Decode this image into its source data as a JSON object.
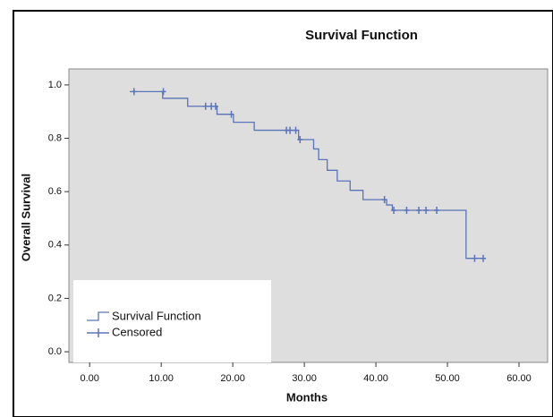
{
  "chart_data": {
    "type": "survival",
    "title": "Survival Function",
    "x_label": "Months",
    "y_label": "Overall Survival",
    "xlim": [
      -2.9,
      64
    ],
    "ylim": [
      -0.04,
      1.06
    ],
    "xticks": [
      {
        "value": 0,
        "label": "0.00"
      },
      {
        "value": 10,
        "label": "10.00"
      },
      {
        "value": 20,
        "label": "20.00"
      },
      {
        "value": 30,
        "label": "30.00"
      },
      {
        "value": 40,
        "label": "40.00"
      },
      {
        "value": 50,
        "label": "50.00"
      },
      {
        "value": 60,
        "label": "60.00"
      }
    ],
    "yticks": [
      {
        "value": 0,
        "label": "0.0"
      },
      0.2,
      0.4,
      0.6,
      0.8,
      {
        "value": 1,
        "label": "1.0"
      }
    ],
    "series": [
      {
        "name": "Survival Function",
        "color": "#5b74b8",
        "x": [
          5.6,
          10.2,
          13.7,
          17.8,
          20.1,
          23.0,
          29.2,
          31.3,
          32.0,
          33.2,
          34.6,
          36.4,
          38.2,
          41.5,
          42.3,
          52.6,
          55.3
        ],
        "values": [
          0.975,
          0.95,
          0.92,
          0.89,
          0.86,
          0.83,
          0.795,
          0.76,
          0.72,
          0.68,
          0.64,
          0.605,
          0.57,
          0.55,
          0.53,
          0.35,
          0.35
        ]
      },
      {
        "name": "Censored",
        "color": "#5b74b8",
        "x": [
          6.2,
          10.3,
          16.2,
          17.0,
          17.6,
          19.8,
          27.5,
          28.0,
          28.8,
          29.4,
          41.2,
          42.5,
          44.3,
          46.0,
          47.0,
          48.5,
          53.8,
          55.0
        ],
        "values": [
          0.975,
          0.975,
          0.92,
          0.92,
          0.92,
          0.89,
          0.83,
          0.83,
          0.83,
          0.795,
          0.57,
          0.53,
          0.53,
          0.53,
          0.53,
          0.53,
          0.35,
          0.35
        ]
      }
    ]
  }
}
